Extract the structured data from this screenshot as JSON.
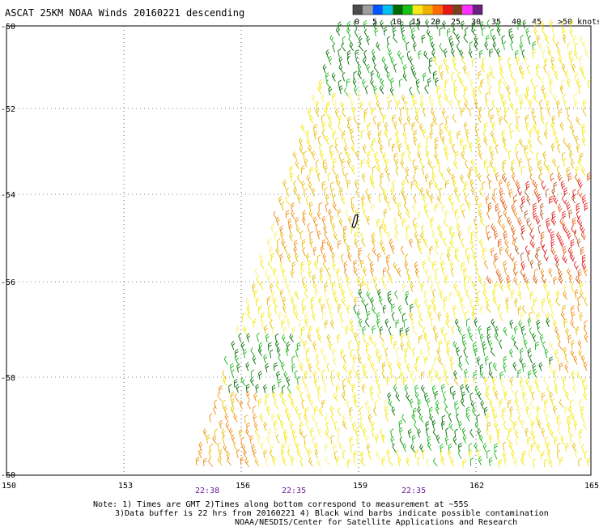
{
  "title": "ASCAT 25KM NOAA Winds 20160221 descending",
  "legend": {
    "labels": [
      "0",
      "5",
      "10",
      "15",
      "20",
      "25",
      "30",
      "35",
      "40",
      "45",
      ">50 knots"
    ],
    "colors": [
      "#4d4d4d",
      "#9e9e9e",
      "#0055ff",
      "#00c0f0",
      "#006600",
      "#18c018",
      "#f8e818",
      "#f0b000",
      "#ff6a00",
      "#e81818",
      "#7a4020",
      "#ff30ff",
      "#6a2080"
    ]
  },
  "map": {
    "lon_ticks": [
      "150",
      "153",
      "156",
      "159",
      "162",
      "165"
    ],
    "lat_ticks": [
      "-50",
      "-52",
      "-54",
      "-56",
      "-58",
      "-60"
    ],
    "time_labels": [
      "22:38",
      "22:35",
      "22:35"
    ]
  },
  "notes": {
    "line1": "Note: 1) Times are GMT 2)Times along bottom correspond to measurement at ~55S",
    "line2": "3)Data buffer is 22 hrs from 20160221 4) Black wind barbs indicate possible contamination",
    "line3": "NOAA/NESDIS/Center for Satellite Applications and Research"
  }
}
